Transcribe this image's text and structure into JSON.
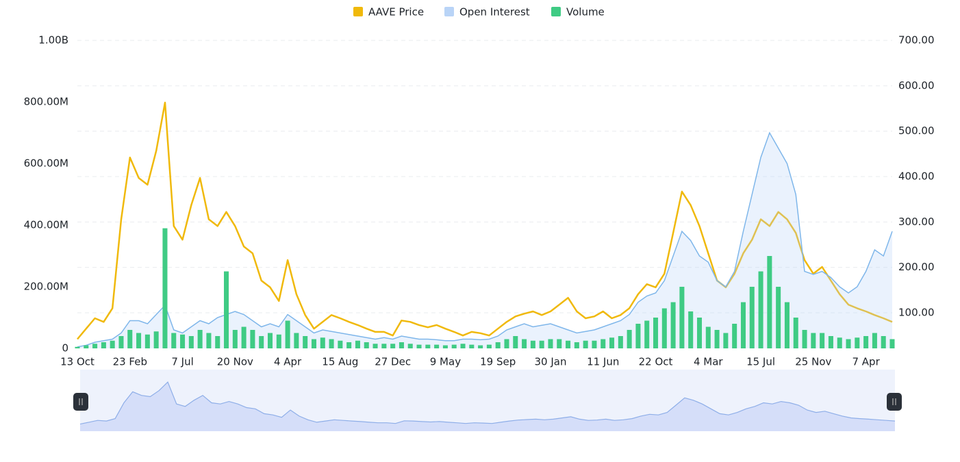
{
  "chart_data": {
    "type": "combo",
    "categories": [
      "13 Oct",
      null,
      null,
      null,
      null,
      null,
      "23 Feb",
      null,
      null,
      null,
      null,
      null,
      "7 Jul",
      null,
      null,
      null,
      null,
      null,
      "20 Nov",
      null,
      null,
      null,
      null,
      null,
      "4 Apr",
      null,
      null,
      null,
      null,
      null,
      "15 Aug",
      null,
      null,
      null,
      null,
      null,
      "27 Dec",
      null,
      null,
      null,
      null,
      null,
      "9 May",
      null,
      null,
      null,
      null,
      null,
      "19 Sep",
      null,
      null,
      null,
      null,
      null,
      "30 Jan",
      null,
      null,
      null,
      null,
      null,
      "11 Jun",
      null,
      null,
      null,
      null,
      null,
      "22 Oct",
      null,
      null,
      null,
      null,
      null,
      "4 Mar",
      null,
      null,
      null,
      null,
      null,
      "15 Jul",
      null,
      null,
      null,
      null,
      null,
      "25 Nov",
      null,
      null,
      null,
      null,
      null,
      "7 Apr",
      null,
      null,
      null
    ],
    "series": [
      {
        "name": "AAVE Price",
        "color": "#f0b90b",
        "axis": "y2",
        "kind": "line",
        "values": [
          42,
          65,
          88,
          80,
          110,
          306,
          442,
          397,
          382,
          457,
          563,
          291,
          261,
          337,
          397,
          306,
          291,
          322,
          291,
          246,
          231,
          171,
          156,
          126,
          216,
          141,
          95,
          65,
          80,
          95,
          88,
          80,
          73,
          65,
          58,
          58,
          50,
          83,
          80,
          73,
          68,
          73,
          65,
          58,
          50,
          58,
          55,
          50,
          65,
          80,
          92,
          98,
          103,
          95,
          103,
          118,
          133,
          103,
          88,
          92,
          103,
          88,
          95,
          110,
          141,
          163,
          156,
          186,
          276,
          367,
          337,
          291,
          231,
          171,
          156,
          186,
          231,
          261,
          306,
          291,
          322,
          306,
          276,
          216,
          186,
          201,
          171,
          141,
          118,
          110,
          103,
          95,
          88,
          80
        ]
      },
      {
        "name": "Open Interest",
        "color": "#b9d4f7",
        "kind": "area",
        "values": [
          5,
          10,
          20,
          25,
          30,
          50,
          90,
          90,
          80,
          110,
          140,
          60,
          50,
          70,
          90,
          80,
          100,
          110,
          120,
          110,
          90,
          70,
          80,
          70,
          110,
          90,
          70,
          50,
          60,
          55,
          50,
          45,
          40,
          35,
          30,
          35,
          30,
          40,
          35,
          30,
          30,
          28,
          25,
          25,
          30,
          30,
          28,
          30,
          40,
          60,
          70,
          80,
          70,
          75,
          80,
          70,
          60,
          50,
          55,
          60,
          70,
          80,
          90,
          110,
          150,
          170,
          180,
          220,
          300,
          380,
          350,
          300,
          280,
          220,
          200,
          250,
          380,
          500,
          620,
          700,
          650,
          600,
          500,
          250,
          240,
          250,
          230,
          200,
          180,
          200,
          250,
          320,
          300,
          380
        ]
      },
      {
        "name": "Volume",
        "color": "#3fcb84",
        "kind": "bar",
        "values": [
          5,
          10,
          15,
          20,
          25,
          40,
          60,
          50,
          45,
          55,
          390,
          50,
          45,
          40,
          60,
          50,
          40,
          250,
          60,
          70,
          60,
          40,
          50,
          45,
          90,
          50,
          40,
          30,
          35,
          30,
          25,
          20,
          25,
          20,
          15,
          15,
          15,
          20,
          15,
          12,
          12,
          12,
          10,
          12,
          15,
          12,
          10,
          12,
          20,
          30,
          40,
          30,
          25,
          25,
          30,
          30,
          25,
          20,
          25,
          25,
          30,
          35,
          40,
          60,
          80,
          90,
          100,
          130,
          150,
          200,
          120,
          100,
          70,
          60,
          50,
          80,
          150,
          200,
          250,
          300,
          200,
          150,
          100,
          60,
          50,
          50,
          40,
          35,
          30,
          35,
          40,
          50,
          40,
          30
        ]
      }
    ],
    "ylim": [
      0,
      1000
    ],
    "yticks": [
      0,
      {
        "value": 200,
        "label": "200.00M"
      },
      {
        "value": 400,
        "label": "400.00M"
      },
      {
        "value": 600,
        "label": "600.00M"
      },
      {
        "value": 800,
        "label": "800.00M"
      },
      {
        "value": 1000,
        "label": "1.00B"
      }
    ],
    "y2lim": [
      21.6,
      700
    ],
    "y2ticks": [
      {
        "value": 100,
        "label": "100.00"
      },
      {
        "value": 200,
        "label": "200.00"
      },
      {
        "value": 300,
        "label": "300.00"
      },
      {
        "value": 400,
        "label": "400.00"
      },
      {
        "value": 500,
        "label": "500.00"
      },
      {
        "value": 600,
        "label": "600.00"
      },
      {
        "value": 700,
        "label": "700.00"
      }
    ],
    "grid": true,
    "legend": "top"
  }
}
